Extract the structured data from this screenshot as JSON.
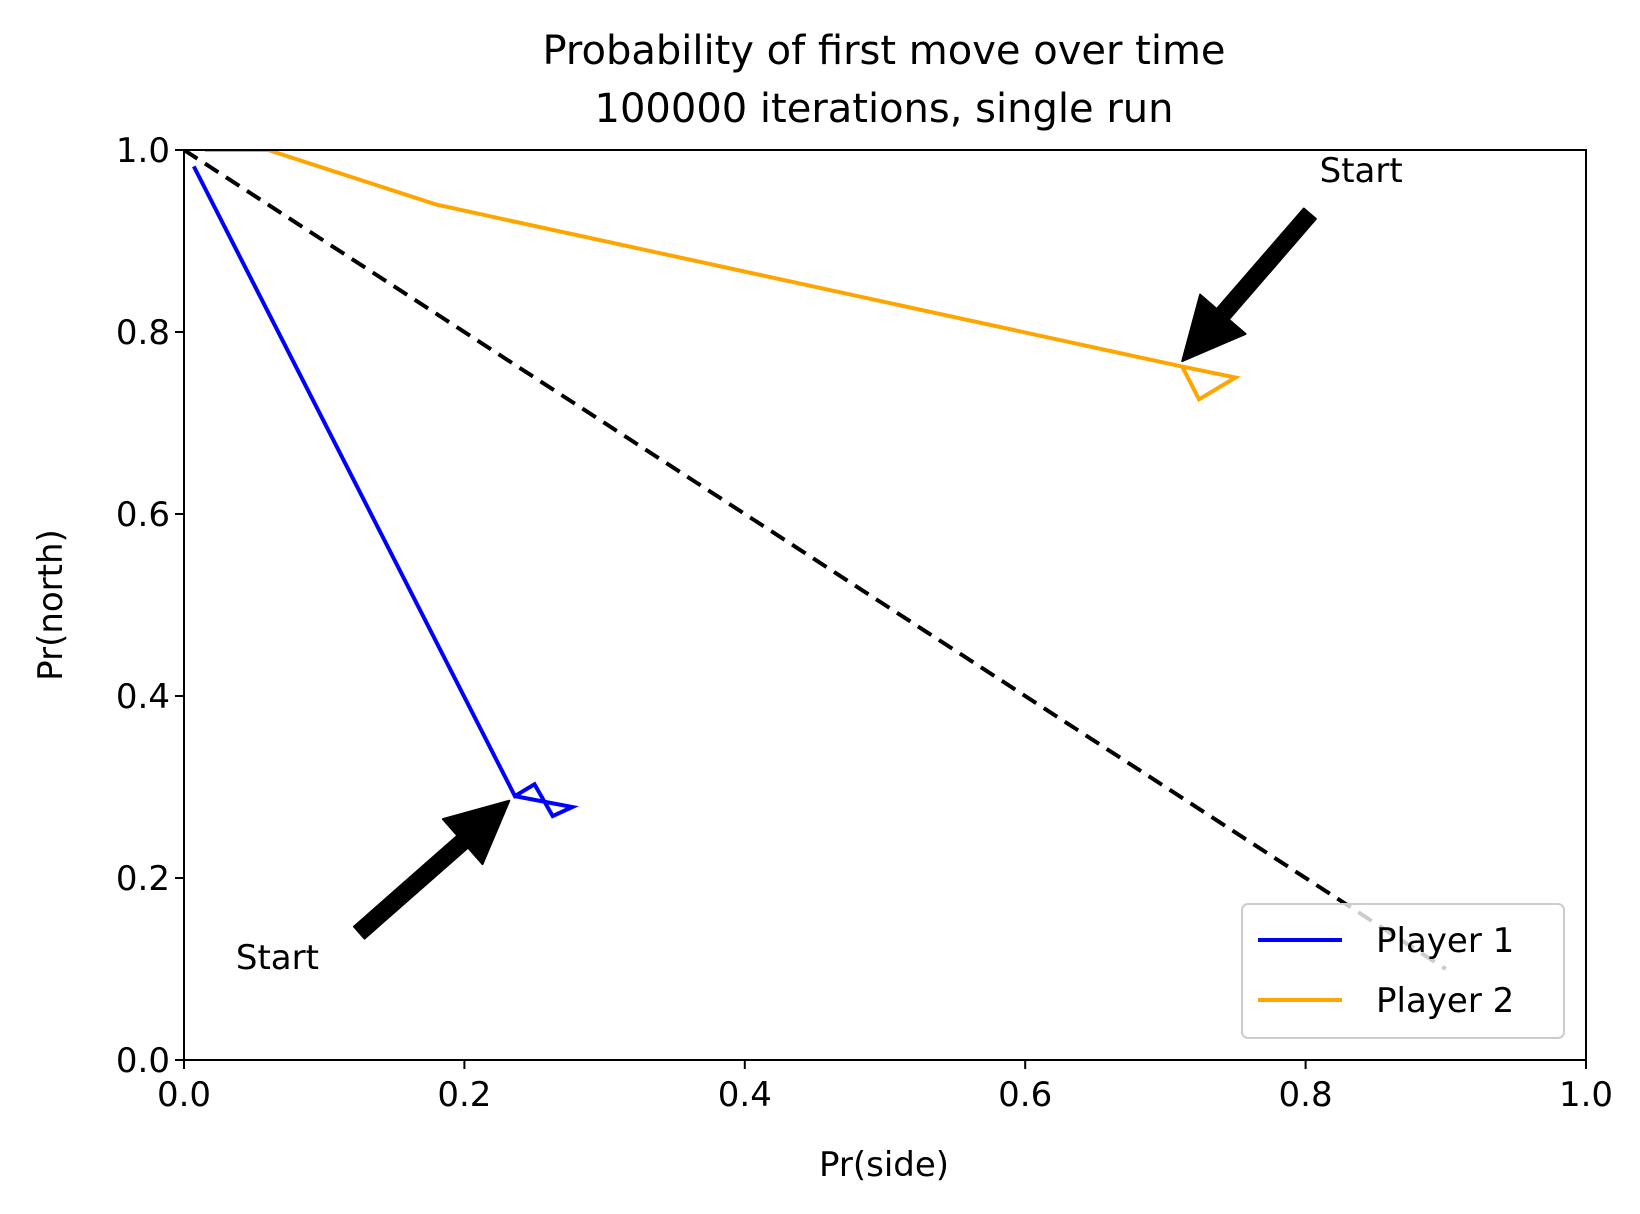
{
  "chart_data": {
    "type": "line",
    "title": "Probability of first move over time",
    "subtitle": "100000 iterations, single run",
    "xlabel": "Pr(side)",
    "ylabel": "Pr(north)",
    "xlim": [
      0.0,
      1.0
    ],
    "ylim": [
      0.0,
      1.0
    ],
    "x_ticks": [
      "0.0",
      "0.2",
      "0.4",
      "0.6",
      "0.8",
      "1.0"
    ],
    "y_ticks": [
      "0.0",
      "0.2",
      "0.4",
      "0.6",
      "0.8",
      "1.0"
    ],
    "grid": false,
    "legend_position": "lower-right",
    "reference_line": {
      "style": "dashed",
      "color": "#000000",
      "points": [
        [
          0.0,
          1.0
        ],
        [
          0.9,
          0.1
        ]
      ]
    },
    "series": [
      {
        "name": "Player 1",
        "color": "#0000ff",
        "points": [
          [
            0.007,
            0.982
          ],
          [
            0.236,
            0.29
          ],
          [
            0.25,
            0.303
          ],
          [
            0.263,
            0.268
          ],
          [
            0.277,
            0.278
          ],
          [
            0.236,
            0.29
          ]
        ]
      },
      {
        "name": "Player 2",
        "color": "#ffa500",
        "points": [
          [
            0.015,
            1.0
          ],
          [
            0.06,
            1.0
          ],
          [
            0.18,
            0.94
          ],
          [
            0.712,
            0.762
          ],
          [
            0.75,
            0.75
          ],
          [
            0.724,
            0.726
          ],
          [
            0.712,
            0.762
          ]
        ]
      }
    ],
    "annotations": [
      {
        "text": "Start",
        "series": "Player 1",
        "target": [
          0.232,
          0.285
        ],
        "text_pos": [
          0.037,
          0.1
        ],
        "arrow_tail": [
          0.125,
          0.14
        ]
      },
      {
        "text": "Start",
        "series": "Player 2",
        "target": [
          0.712,
          0.768
        ],
        "text_pos": [
          0.81,
          0.965
        ],
        "arrow_tail": [
          0.803,
          0.93
        ]
      }
    ]
  }
}
